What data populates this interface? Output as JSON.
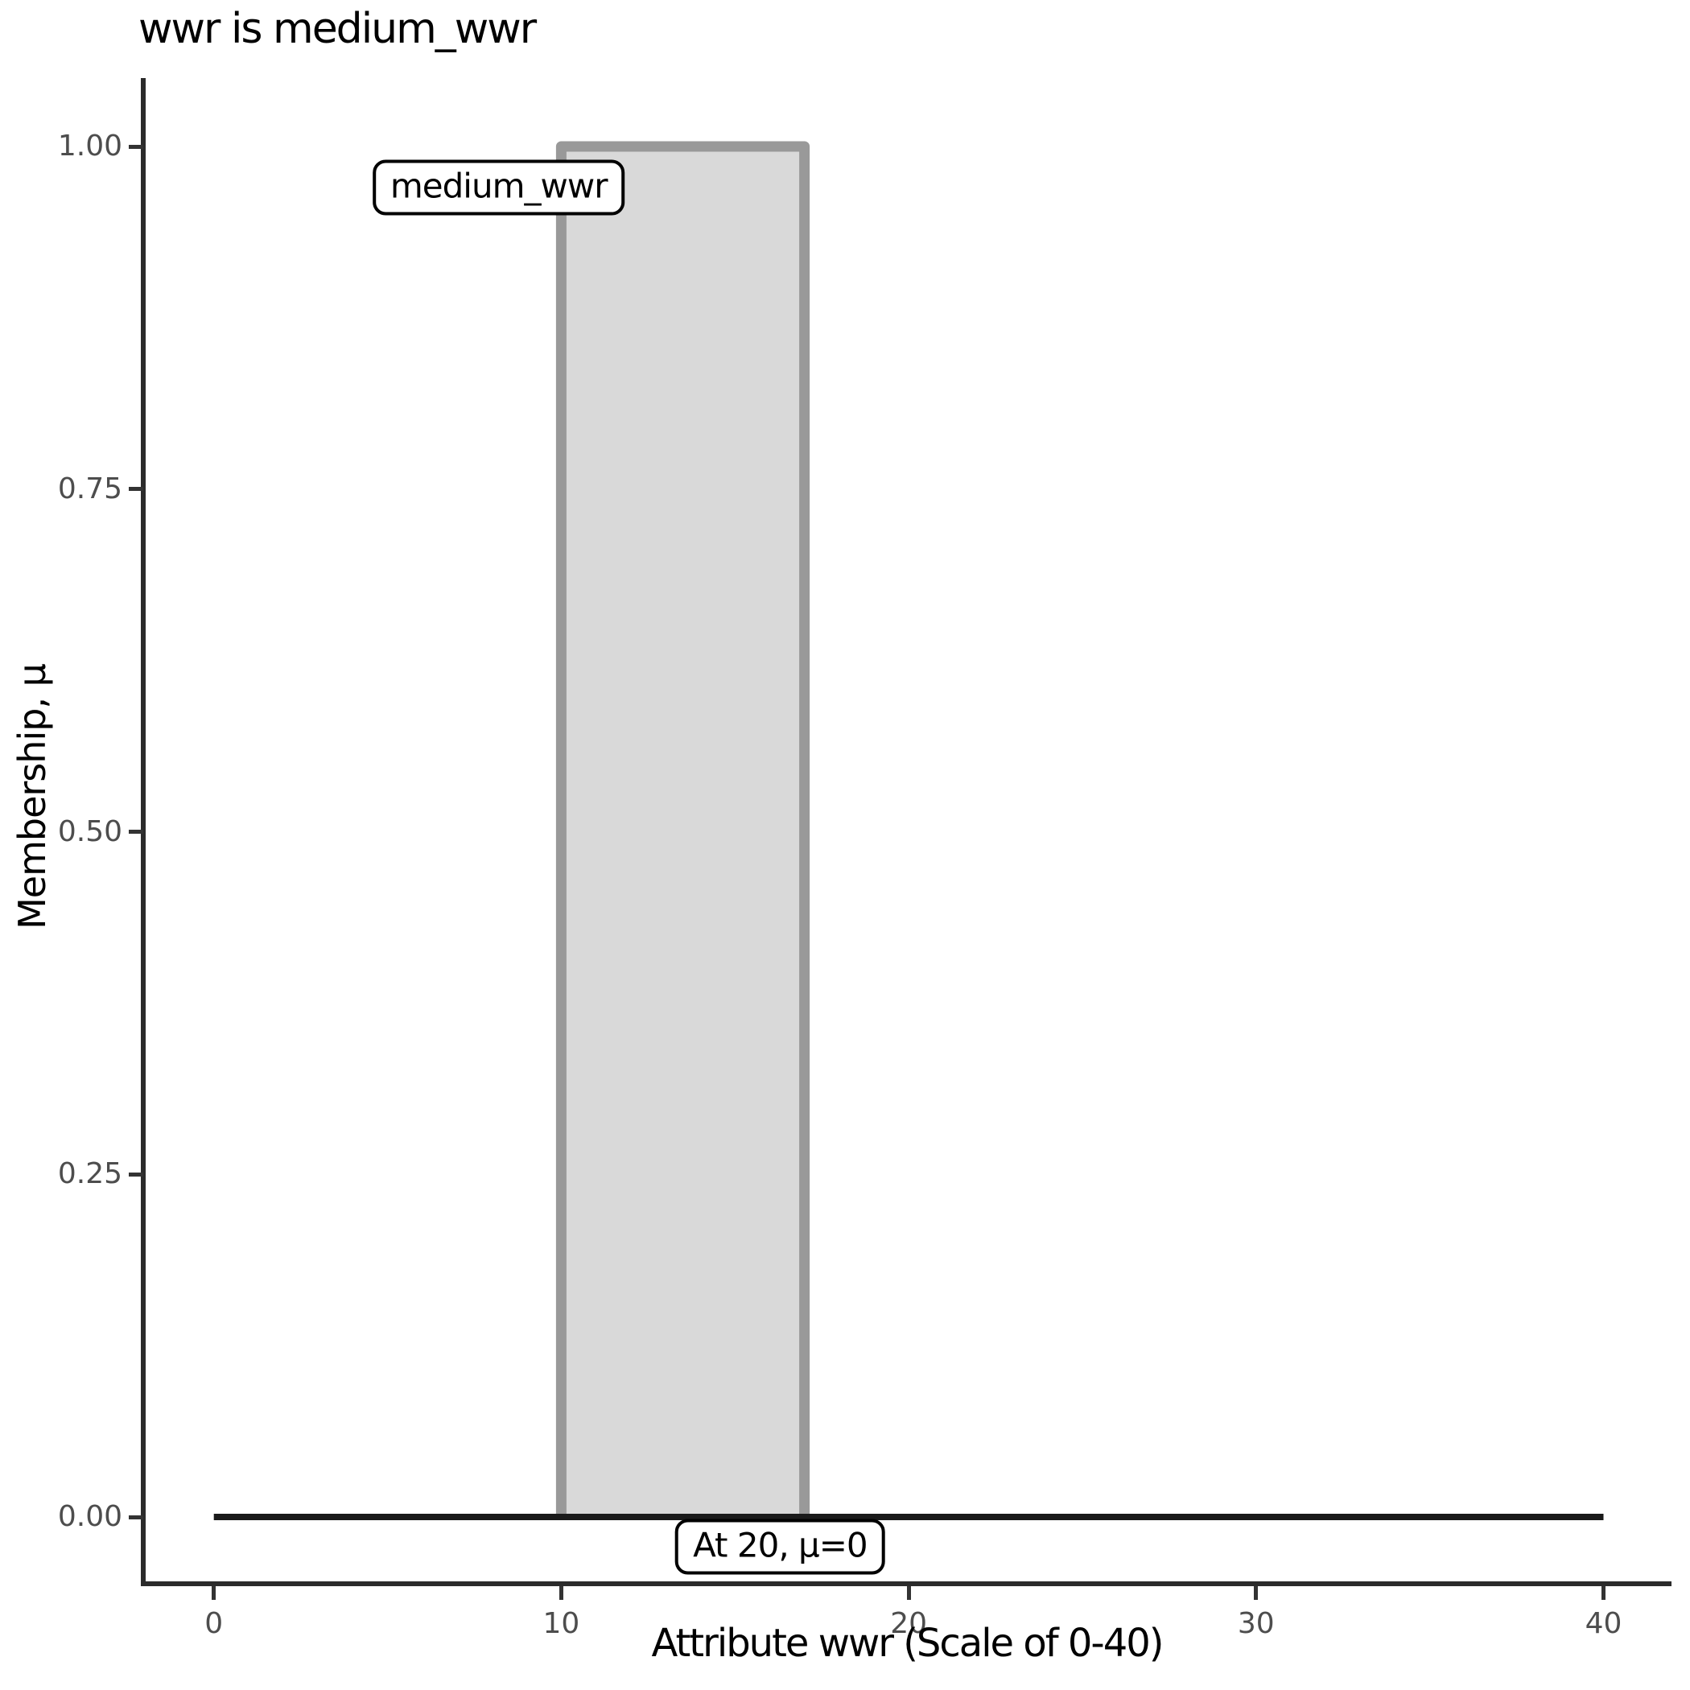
{
  "chart_data": {
    "type": "area",
    "title": "wwr is medium_wwr",
    "xlabel": "Attribute wwr (Scale of 0-40)",
    "ylabel": "Membership, μ",
    "xlim": [
      0,
      40
    ],
    "ylim": [
      0,
      1
    ],
    "grid": false,
    "legend": "none",
    "x_ticks": [
      {
        "label": "0",
        "value": 0
      },
      {
        "label": "10",
        "value": 10
      },
      {
        "label": "20",
        "value": 20
      },
      {
        "label": "30",
        "value": 30
      },
      {
        "label": "40",
        "value": 40
      }
    ],
    "y_ticks": [
      {
        "label": "0.00",
        "value": 0
      },
      {
        "label": "0.25",
        "value": 0.25
      },
      {
        "label": "0.50",
        "value": 0.5
      },
      {
        "label": "0.75",
        "value": 0.75
      },
      {
        "label": "1.00",
        "value": 1
      }
    ],
    "series": [
      {
        "name": "medium_wwr",
        "type": "membership-function",
        "points": [
          [
            10,
            0
          ],
          [
            10,
            1
          ],
          [
            17,
            1
          ],
          [
            17,
            0
          ]
        ],
        "fill": "#d9d9d9",
        "stroke": "#999999",
        "stroke_width": 13
      },
      {
        "name": "baseline-mu-zero",
        "type": "line",
        "points": [
          [
            0,
            0
          ],
          [
            40,
            0
          ]
        ],
        "stroke": "#1a1a1a",
        "stroke_width": 8
      }
    ],
    "annotations": [
      {
        "text": "medium_wwr",
        "x": 8.2,
        "mu": 0.97
      },
      {
        "text": "At 20, μ=0",
        "x": 16.3,
        "mu": -0.022
      }
    ]
  },
  "colors": {
    "background": "#ffffff",
    "text": "#000000",
    "tick_label": "#4d4d4d",
    "axis_line": "#2b2b2b",
    "tick_mark": "#333333"
  }
}
